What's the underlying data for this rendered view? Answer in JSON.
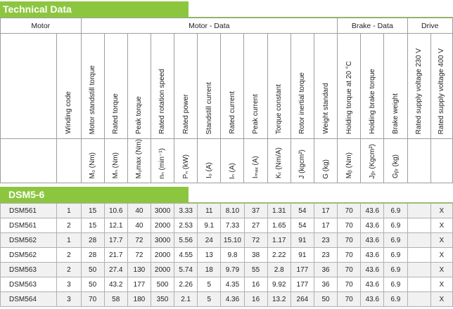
{
  "section_title": "Technical Data",
  "groups": [
    "Motor",
    "Motor - Data",
    "Brake - Data",
    "Drive"
  ],
  "columns": [
    "Winding code",
    "Motor standstill torque",
    "Rated torque",
    "Peak torque",
    "Rated rotation speed",
    "Rated power",
    "Standstill current",
    "Rated current",
    "Peak current",
    "Torque constant",
    "Rotor inertial torque",
    "Weight standard",
    "Holding torque at 20 °C",
    "Holding brake torque",
    "Brake weight",
    "Rated supply voltage 230 V",
    "Rated supply voltage 400 V"
  ],
  "units": [
    "",
    "M₀ (Nm)",
    "Mₙ (Nm)",
    "M₀max (Nm)",
    "nₙ (min⁻¹)",
    "Pₙ (kW)",
    "I₀ (A)",
    "Iₙ (A)",
    "Iₘₐₓ (A)",
    "Kₜ (Nm/A)",
    "J (kgcm²)",
    "G (kg)",
    "Mᵦ (Nm)",
    "Jᵦᵣ (Kgcm²)",
    "Gᵦᵣ (kg)",
    "",
    ""
  ],
  "subsection_title": "DSM5-6",
  "rows": [
    [
      "DSM561",
      "1",
      "15",
      "10.6",
      "40",
      "3000",
      "3.33",
      "11",
      "8.10",
      "37",
      "1.31",
      "54",
      "17",
      "70",
      "43.6",
      "6.9",
      "",
      "X"
    ],
    [
      "DSM561",
      "2",
      "15",
      "12.1",
      "40",
      "2000",
      "2.53",
      "9.1",
      "7.33",
      "27",
      "1.65",
      "54",
      "17",
      "70",
      "43.6",
      "6.9",
      "",
      "X"
    ],
    [
      "DSM562",
      "1",
      "28",
      "17.7",
      "72",
      "3000",
      "5.56",
      "24",
      "15.10",
      "72",
      "1.17",
      "91",
      "23",
      "70",
      "43.6",
      "6.9",
      "",
      "X"
    ],
    [
      "DSM562",
      "2",
      "28",
      "21.7",
      "72",
      "2000",
      "4.55",
      "13",
      "9.8",
      "38",
      "2.22",
      "91",
      "23",
      "70",
      "43.6",
      "6.9",
      "",
      "X"
    ],
    [
      "DSM563",
      "2",
      "50",
      "27.4",
      "130",
      "2000",
      "5.74",
      "18",
      "9.79",
      "55",
      "2.8",
      "177",
      "36",
      "70",
      "43.6",
      "6.9",
      "",
      "X"
    ],
    [
      "DSM563",
      "3",
      "50",
      "43.2",
      "177",
      "500",
      "2.26",
      "5",
      "4.35",
      "16",
      "9.92",
      "177",
      "36",
      "70",
      "43.6",
      "6.9",
      "",
      "X"
    ],
    [
      "DSM564",
      "3",
      "70",
      "58",
      "180",
      "350",
      "2.1",
      "5",
      "4.36",
      "16",
      "13.2",
      "264",
      "50",
      "70",
      "43.6",
      "6.9",
      "",
      "X"
    ]
  ]
}
